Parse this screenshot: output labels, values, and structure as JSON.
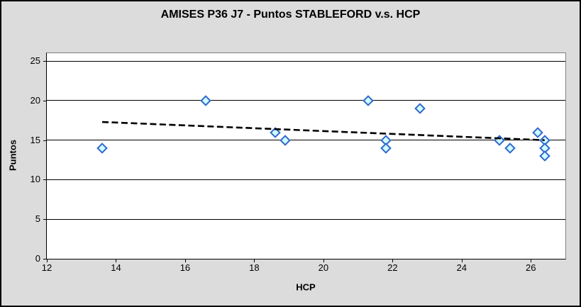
{
  "chart_data": {
    "type": "scatter",
    "title": "AMISES P36 J7 - Puntos STABLEFORD v.s. HCP",
    "xlabel": "HCP",
    "ylabel": "Puntos",
    "xlim": [
      12,
      27
    ],
    "ylim": [
      0,
      26
    ],
    "x_ticks": [
      12,
      14,
      16,
      18,
      20,
      22,
      24,
      26
    ],
    "y_ticks": [
      0,
      5,
      10,
      15,
      20,
      25
    ],
    "grid": "horizontal-only",
    "legend": "none",
    "points": [
      {
        "x": 13.6,
        "y": 14
      },
      {
        "x": 16.6,
        "y": 20
      },
      {
        "x": 18.6,
        "y": 16
      },
      {
        "x": 18.9,
        "y": 15
      },
      {
        "x": 21.3,
        "y": 20
      },
      {
        "x": 21.8,
        "y": 15
      },
      {
        "x": 21.8,
        "y": 14
      },
      {
        "x": 22.8,
        "y": 19
      },
      {
        "x": 25.1,
        "y": 15
      },
      {
        "x": 25.4,
        "y": 14
      },
      {
        "x": 26.2,
        "y": 16
      },
      {
        "x": 26.4,
        "y": 15
      },
      {
        "x": 26.4,
        "y": 14
      },
      {
        "x": 26.4,
        "y": 13
      }
    ],
    "trendline": {
      "style": "dashed",
      "x1": 13.6,
      "y1": 17.3,
      "x2": 26.4,
      "y2": 15.0
    },
    "colors": {
      "chart_background": "#dcdcdc",
      "plot_background": "#ffffff",
      "gridline": "#000000",
      "axis": "#000000",
      "plot_border": "#808080",
      "outer_border": "#000000",
      "marker_fill": "#ccffff",
      "marker_border": "#3366cc",
      "trendline": "#000000",
      "text": "#000000"
    }
  }
}
